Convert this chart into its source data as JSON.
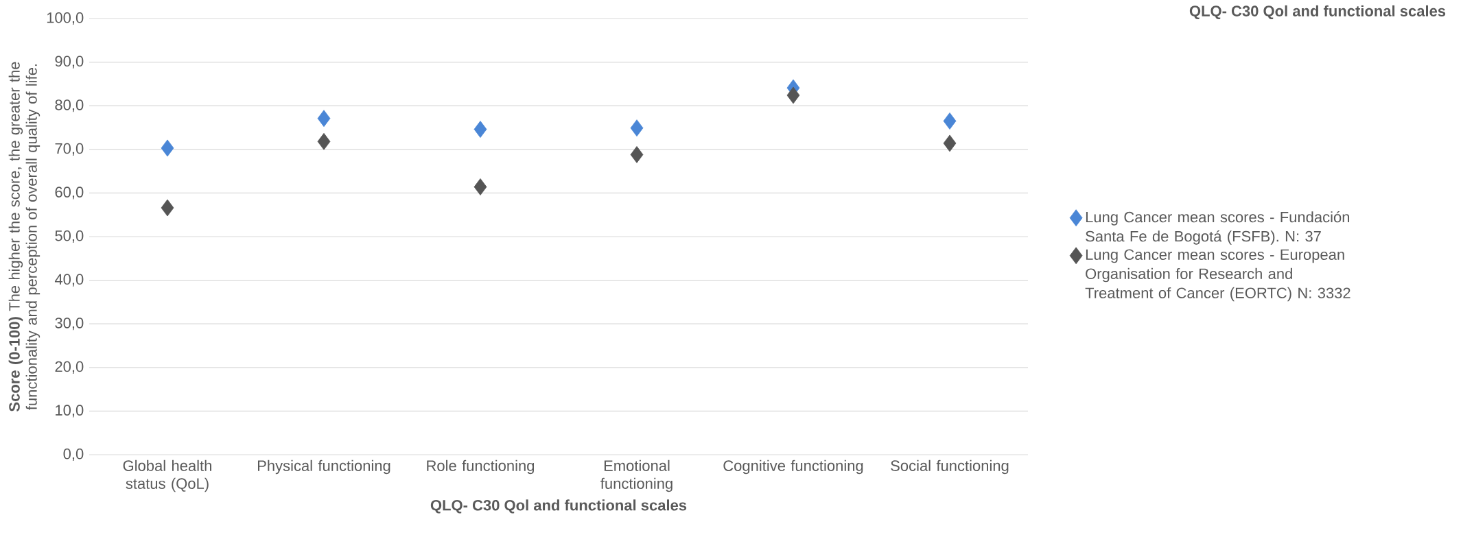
{
  "chart_data": {
    "type": "scatter",
    "title": "QLQ- C30 Qol and functional scales",
    "xlabel": "QLQ- C30 Qol and functional scales",
    "ylabel": "**Score (0-100)** The higher the score, the greater the functionality and perception of overall quality of life.",
    "categories": [
      "Global health status (QoL)",
      "Physical functioning",
      "Role functioning",
      "Emotional functioning",
      "Cognitive functioning",
      "Social functioning"
    ],
    "series": [
      {
        "name": "Lung Cancer mean scores - Fundación Santa Fe de Bogotá (FSFB). N: 37",
        "color": "#4a86d6",
        "values": [
          70.3,
          77.1,
          74.6,
          74.9,
          84.1,
          76.5
        ]
      },
      {
        "name": "Lung Cancer mean scores -  European Organisation for Research and Treatment of Cancer (EORTC) N: 3332",
        "color": "#555555",
        "values": [
          56.6,
          71.8,
          61.4,
          68.8,
          82.4,
          71.4
        ]
      }
    ],
    "ylim": [
      0,
      100
    ],
    "yticks": [
      {
        "value": 0,
        "label": "0,0"
      },
      {
        "value": 10,
        "label": "10,0"
      },
      {
        "value": 20,
        "label": "20,0"
      },
      {
        "value": 30,
        "label": "30,0"
      },
      {
        "value": 40,
        "label": "40,0"
      },
      {
        "value": 50,
        "label": "50,0"
      },
      {
        "value": 60,
        "label": "60,0"
      },
      {
        "value": 70,
        "label": "70,0"
      },
      {
        "value": 80,
        "label": "80,0"
      },
      {
        "value": 90,
        "label": "90,0"
      },
      {
        "value": 100,
        "label": "100,0"
      }
    ],
    "grid": "y",
    "legend": "right",
    "marker": "diamond"
  }
}
